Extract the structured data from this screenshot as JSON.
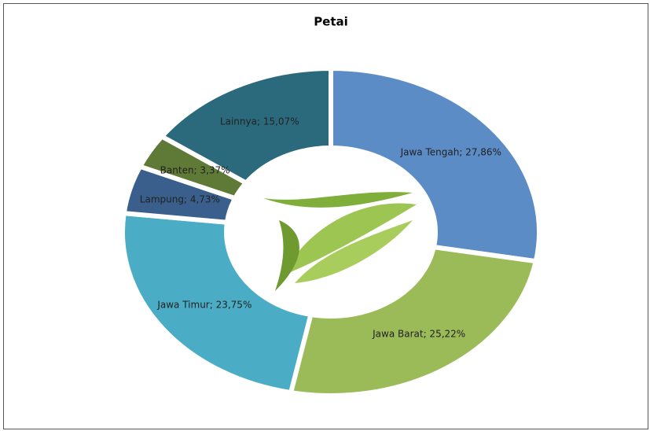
{
  "chart_data": {
    "type": "donut",
    "title": "Petai",
    "categories": [
      "Jawa Tengah",
      "Jawa Barat",
      "Jawa Timur",
      "Lampung",
      "Banten",
      "Lainnya"
    ],
    "values": [
      27.86,
      25.22,
      23.75,
      4.73,
      3.37,
      15.07
    ],
    "value_labels": [
      "Jawa Tengah; 27,86%",
      "Jawa Barat; 25,22%",
      "Jawa Timur; 23,75%",
      "Lampung; 4,73%",
      "Banten; 3,37%",
      "Lainnya; 15,07%"
    ],
    "colors": [
      "#5b8cc6",
      "#9bbb59",
      "#4bacc6",
      "#3a5f8c",
      "#5f7a36",
      "#2b6a7c"
    ]
  }
}
